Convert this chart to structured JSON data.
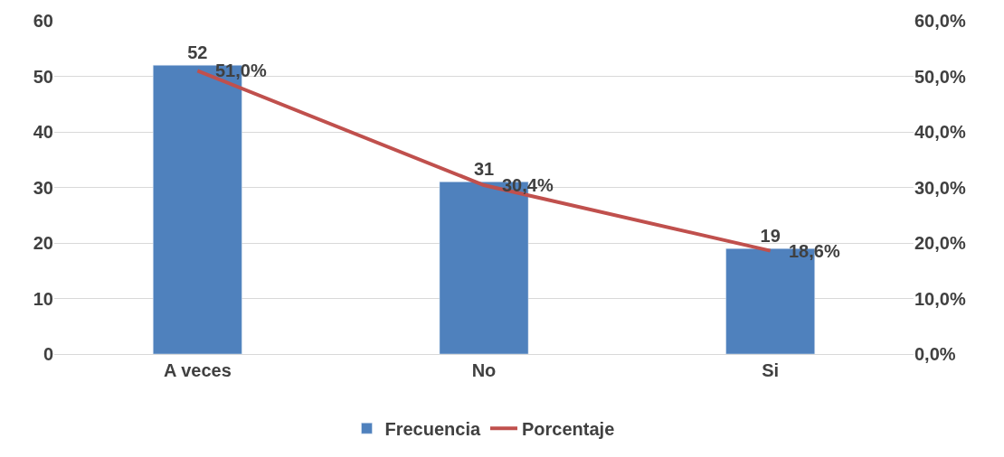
{
  "chart_data": {
    "type": "bar",
    "categories": [
      "A veces",
      "No",
      "Si"
    ],
    "series": [
      {
        "name": "Frecuencia",
        "color": "#4f81bd",
        "values": [
          52,
          31,
          19
        ],
        "value_labels": [
          "52",
          "31",
          "19"
        ]
      },
      {
        "name": "Porcentaje",
        "type": "line",
        "axis": "y2",
        "color": "#c0504d",
        "values": [
          51.0,
          30.4,
          18.6
        ],
        "value_labels": [
          "51,0%",
          "30,4%",
          "18,6%"
        ],
        "marker": "none"
      }
    ],
    "ylim": [
      0,
      60
    ],
    "yticks": [
      0,
      10,
      20,
      30,
      40,
      50,
      60
    ],
    "y2lim": [
      0,
      60
    ],
    "y2ticks": [
      {
        "value": 0,
        "label": "0,0%"
      },
      {
        "value": 10,
        "label": "10,0%"
      },
      {
        "value": 20,
        "label": "20,0%"
      },
      {
        "value": 30,
        "label": "30,0%"
      },
      {
        "value": 40,
        "label": "40,0%"
      },
      {
        "value": 50,
        "label": "50,0%"
      },
      {
        "value": 60,
        "label": "60,0%"
      }
    ],
    "grid": "y",
    "legend": "bottom"
  }
}
